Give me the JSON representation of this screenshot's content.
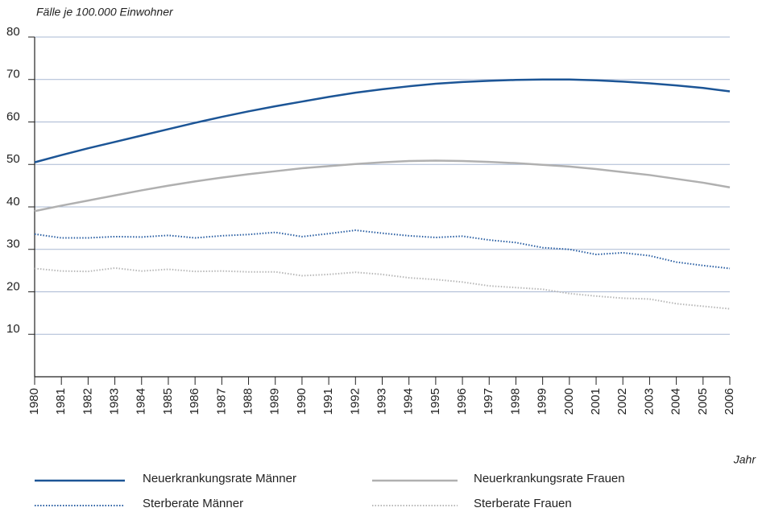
{
  "chart_data": {
    "type": "line",
    "y_label": "Fälle je 100.000 Einwohner",
    "x_label": "Jahr",
    "x": [
      1980,
      1981,
      1982,
      1983,
      1984,
      1985,
      1986,
      1987,
      1988,
      1989,
      1990,
      1991,
      1992,
      1993,
      1994,
      1995,
      1996,
      1997,
      1998,
      1999,
      2000,
      2001,
      2002,
      2003,
      2004,
      2005,
      2006
    ],
    "xlim": [
      1980,
      2006
    ],
    "ylim": [
      0,
      80
    ],
    "yticks": [
      10,
      20,
      30,
      40,
      50,
      60,
      70,
      80
    ],
    "grid": true,
    "legend": "bottom",
    "series": [
      {
        "name": "Neuerkrankungsrate Männer",
        "color": "#1c5596",
        "dash": "solid",
        "values": [
          50.5,
          52.2,
          53.8,
          55.3,
          56.8,
          58.3,
          59.8,
          61.2,
          62.5,
          63.7,
          64.8,
          65.9,
          66.9,
          67.7,
          68.4,
          69.0,
          69.4,
          69.7,
          69.9,
          70.0,
          70.0,
          69.8,
          69.5,
          69.1,
          68.6,
          68.0,
          67.2
        ]
      },
      {
        "name": "Sterberate Männer",
        "color": "#2a5fa3",
        "dash": "dotted",
        "values": [
          33.6,
          32.7,
          32.7,
          33.0,
          32.9,
          33.3,
          32.7,
          33.2,
          33.5,
          34.0,
          33.0,
          33.7,
          34.5,
          33.8,
          33.2,
          32.8,
          33.1,
          32.2,
          31.6,
          30.4,
          30.0,
          28.8,
          29.2,
          28.5,
          27.0,
          26.2,
          25.5
        ]
      },
      {
        "name": "Neuerkrankungsrate Frauen",
        "color": "#b0b0b0",
        "dash": "solid",
        "values": [
          39.0,
          40.3,
          41.5,
          42.7,
          43.9,
          45.0,
          46.0,
          46.9,
          47.7,
          48.4,
          49.1,
          49.6,
          50.1,
          50.5,
          50.8,
          50.9,
          50.8,
          50.6,
          50.3,
          49.9,
          49.5,
          48.9,
          48.2,
          47.5,
          46.6,
          45.7,
          44.6
        ]
      },
      {
        "name": "Sterberate Frauen",
        "color": "#b8b8b8",
        "dash": "dotted",
        "values": [
          25.5,
          24.9,
          24.8,
          25.6,
          24.9,
          25.3,
          24.8,
          24.9,
          24.7,
          24.7,
          23.8,
          24.1,
          24.6,
          24.1,
          23.3,
          22.9,
          22.3,
          21.4,
          21.0,
          20.6,
          19.6,
          19.0,
          18.5,
          18.3,
          17.2,
          16.6,
          16.0
        ]
      }
    ]
  }
}
